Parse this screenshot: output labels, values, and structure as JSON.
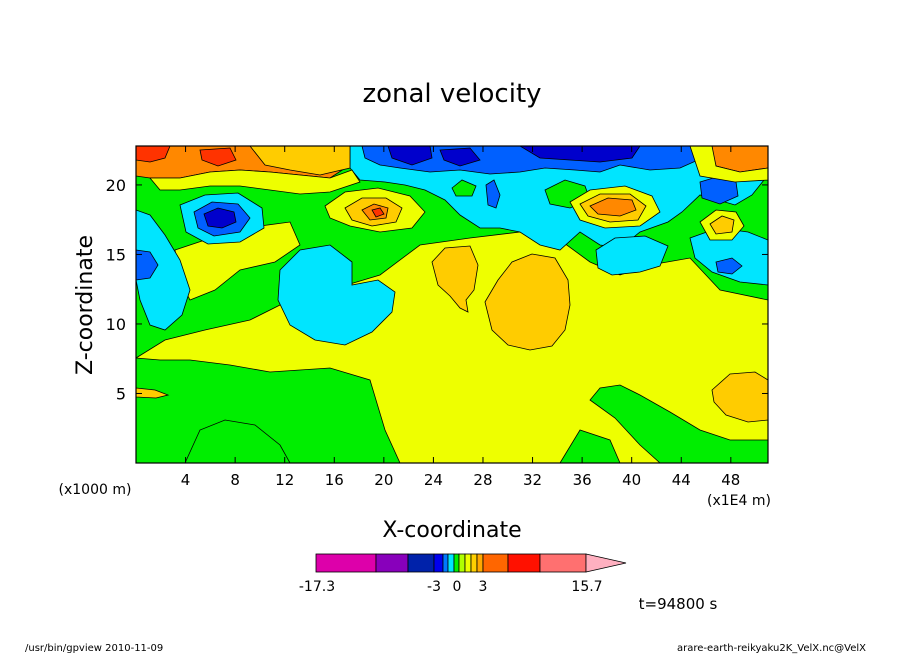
{
  "chart_data": {
    "type": "heatmap",
    "title": "zonal velocity",
    "xlabel": "X-coordinate",
    "ylabel": "Z-coordinate",
    "x_unit_label": "(x1E4 m)",
    "z_unit_label": "(x1000 m)",
    "xlim": [
      0,
      51
    ],
    "ylim": [
      0,
      22.8
    ],
    "x_ticks": [
      4,
      8,
      12,
      16,
      20,
      24,
      28,
      32,
      36,
      40,
      44,
      48
    ],
    "y_ticks": [
      5,
      10,
      15,
      20
    ],
    "colorbar": {
      "min_label": "-17.3",
      "max_label": "15.7",
      "tick_labels": [
        "-3",
        "0",
        "3"
      ],
      "level_colors": [
        "#dd00aa",
        "#8800bb",
        "#0022aa",
        "#0000ee",
        "#0077ff",
        "#00e5ff",
        "#00ee00",
        "#b0ff00",
        "#eeff00",
        "#ffd000",
        "#ffa800",
        "#ff6600",
        "#ff1100",
        "#ff7070",
        "#ffb0c0"
      ]
    },
    "time_label": "t=94800 s",
    "contour_colors": {
      "darkblue": "#0000cc",
      "blue": "#0060ff",
      "cyan": "#00e5ff",
      "green": "#00ee00",
      "yellow": "#eeff00",
      "gold": "#ffcc00",
      "orange": "#ff8800",
      "red": "#ff3300"
    }
  },
  "footer": {
    "left": "/usr/bin/gpview  2010-11-09",
    "right": "arare-earth-reikyaku2K_VelX.nc@VelX"
  }
}
